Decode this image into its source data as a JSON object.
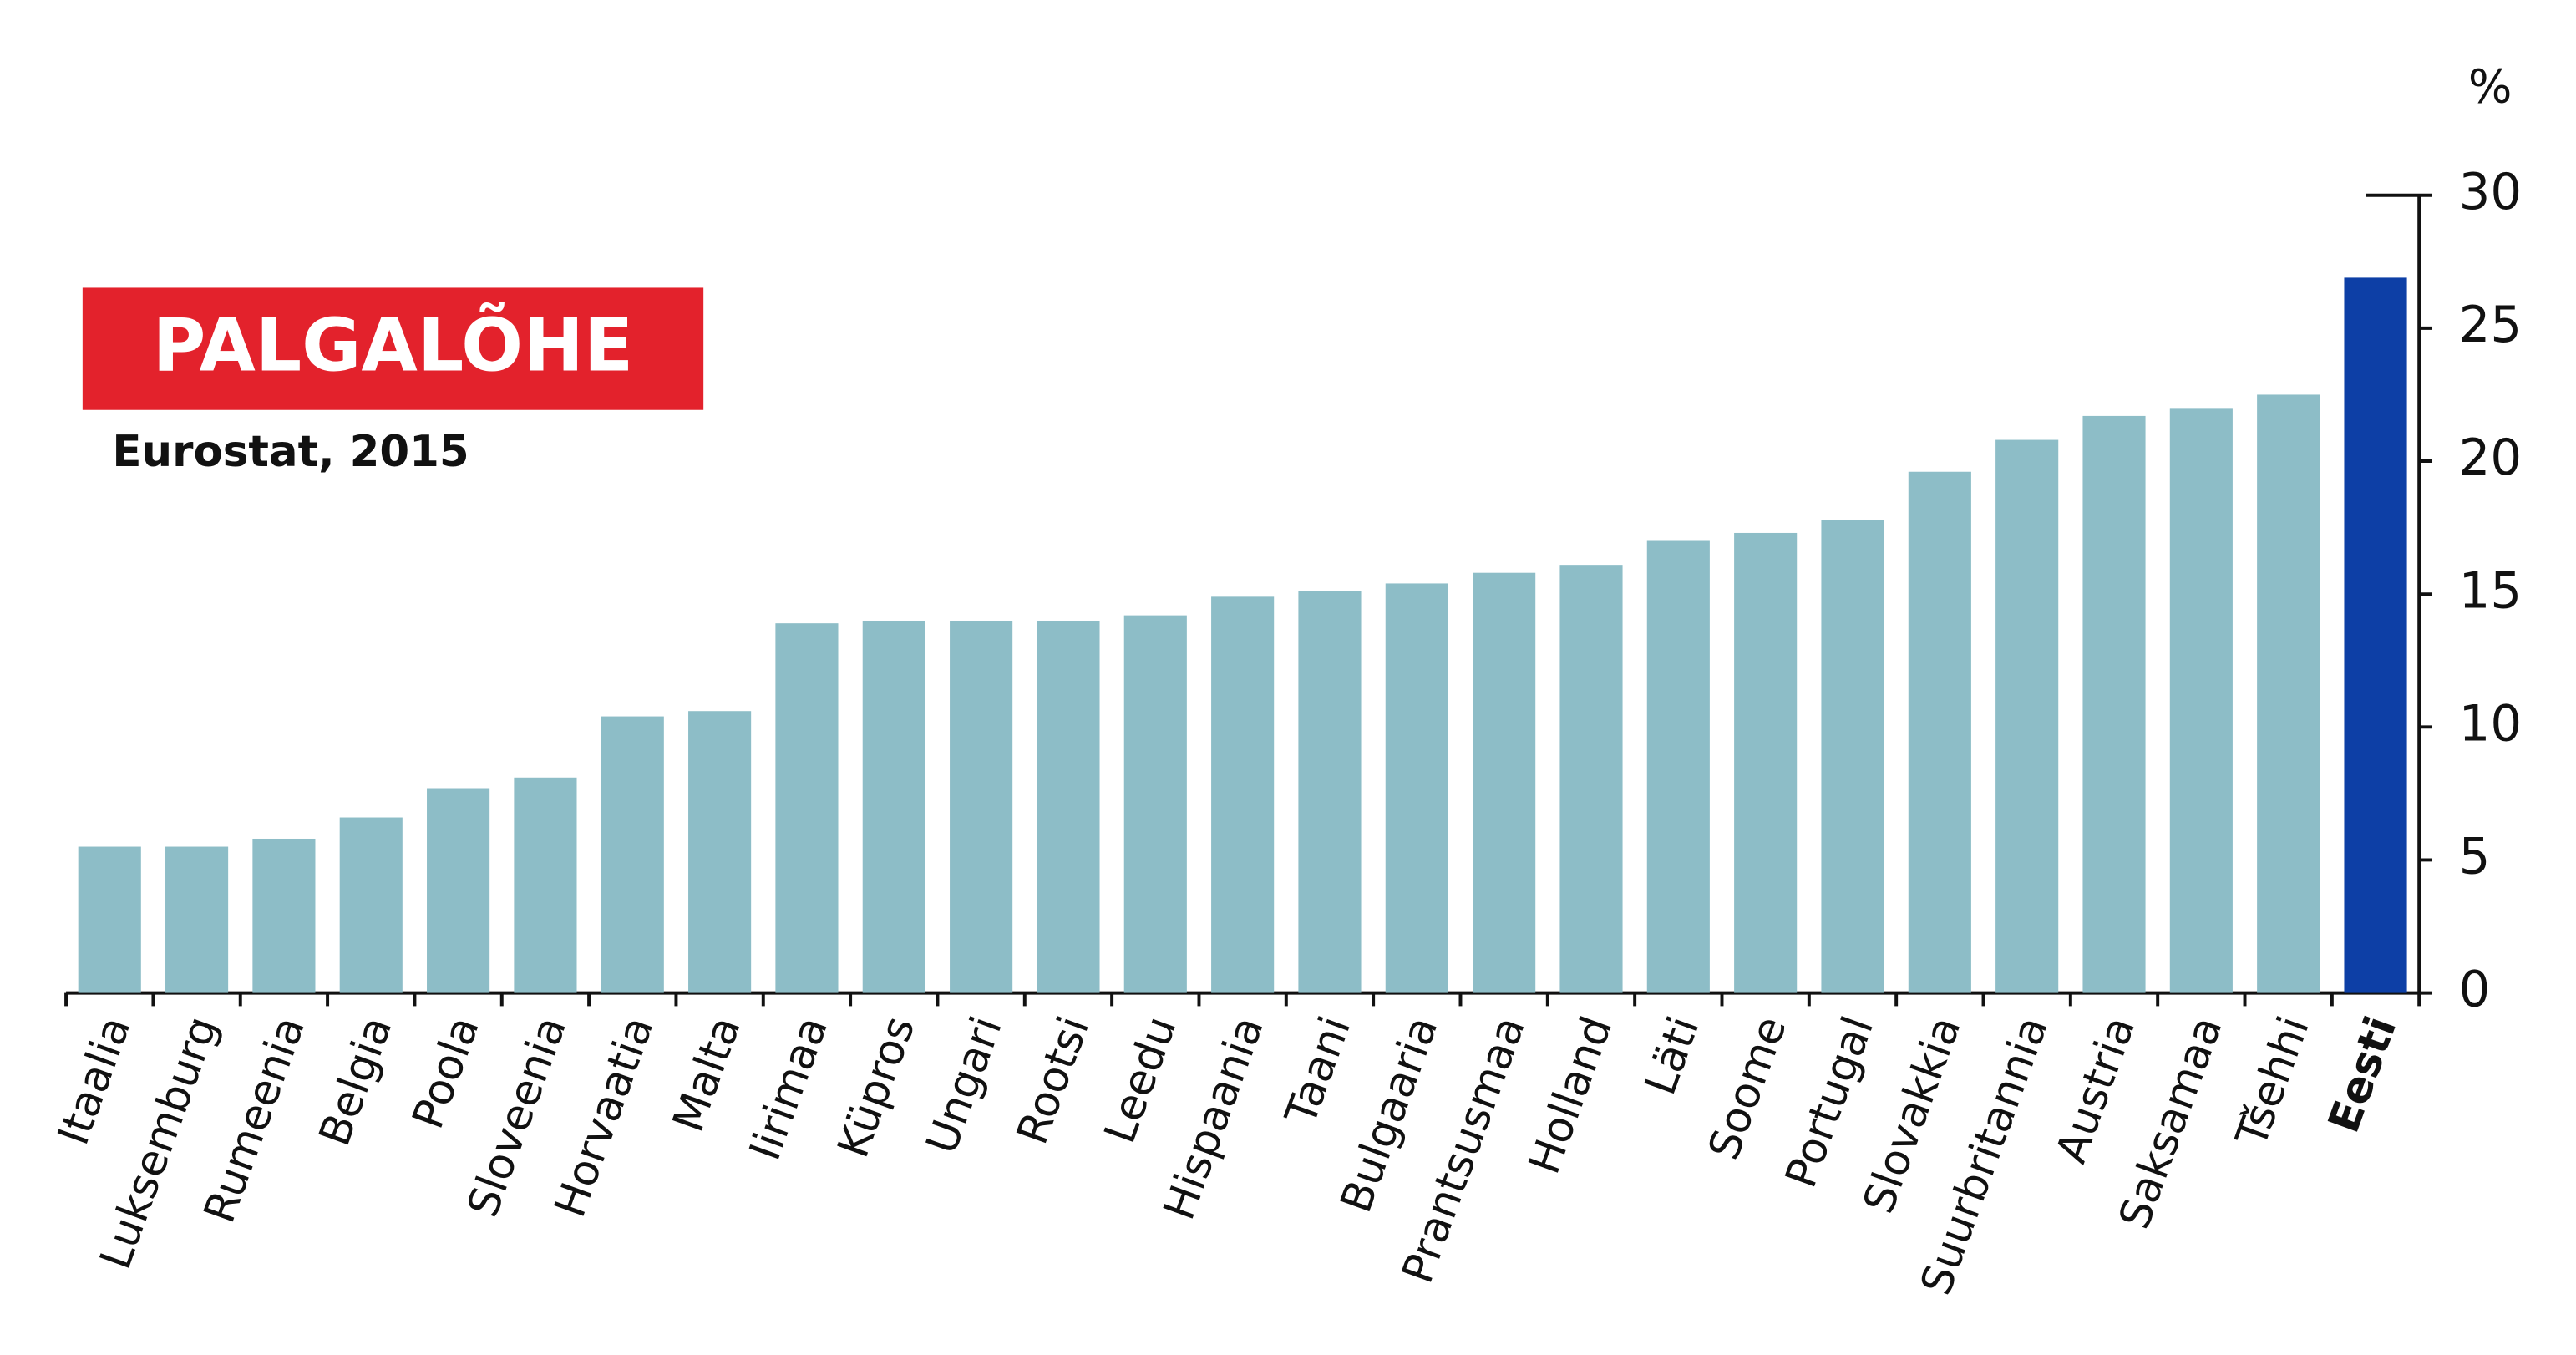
{
  "chart_data": {
    "type": "bar",
    "title": "PALGALÕHE",
    "subtitle": "Eurostat, 2015",
    "y_label": "%",
    "categories": [
      "Itaalia",
      "Luksemburg",
      "Rumeenia",
      "Belgia",
      "Poola",
      "Sloveenia",
      "Horvaatia",
      "Malta",
      "Iirimaa",
      "Küpros",
      "Ungari",
      "Rootsi",
      "Leedu",
      "Hispaania",
      "Taani",
      "Bulgaaria",
      "Prantsusmaa",
      "Holland",
      "Läti",
      "Soome",
      "Portugal",
      "Slovakkia",
      "Suurbritannia",
      "Austria",
      "Saksamaa",
      "Tšehhi",
      "Eesti"
    ],
    "values": [
      5.5,
      5.5,
      5.8,
      6.6,
      7.7,
      8.1,
      10.4,
      10.6,
      13.9,
      14.0,
      14.0,
      14.0,
      14.2,
      14.9,
      15.1,
      15.4,
      15.8,
      16.1,
      17.0,
      17.3,
      17.8,
      19.6,
      20.8,
      21.7,
      22.0,
      22.5,
      26.9
    ],
    "color": "#8dbdc7",
    "highlight_color": "#0d3fa6",
    "highlight_index": 26,
    "ylim": [
      0,
      30
    ],
    "yticks": [
      0,
      5,
      10,
      15,
      20,
      25,
      30
    ],
    "y_axis_side": "right",
    "grid": false
  }
}
